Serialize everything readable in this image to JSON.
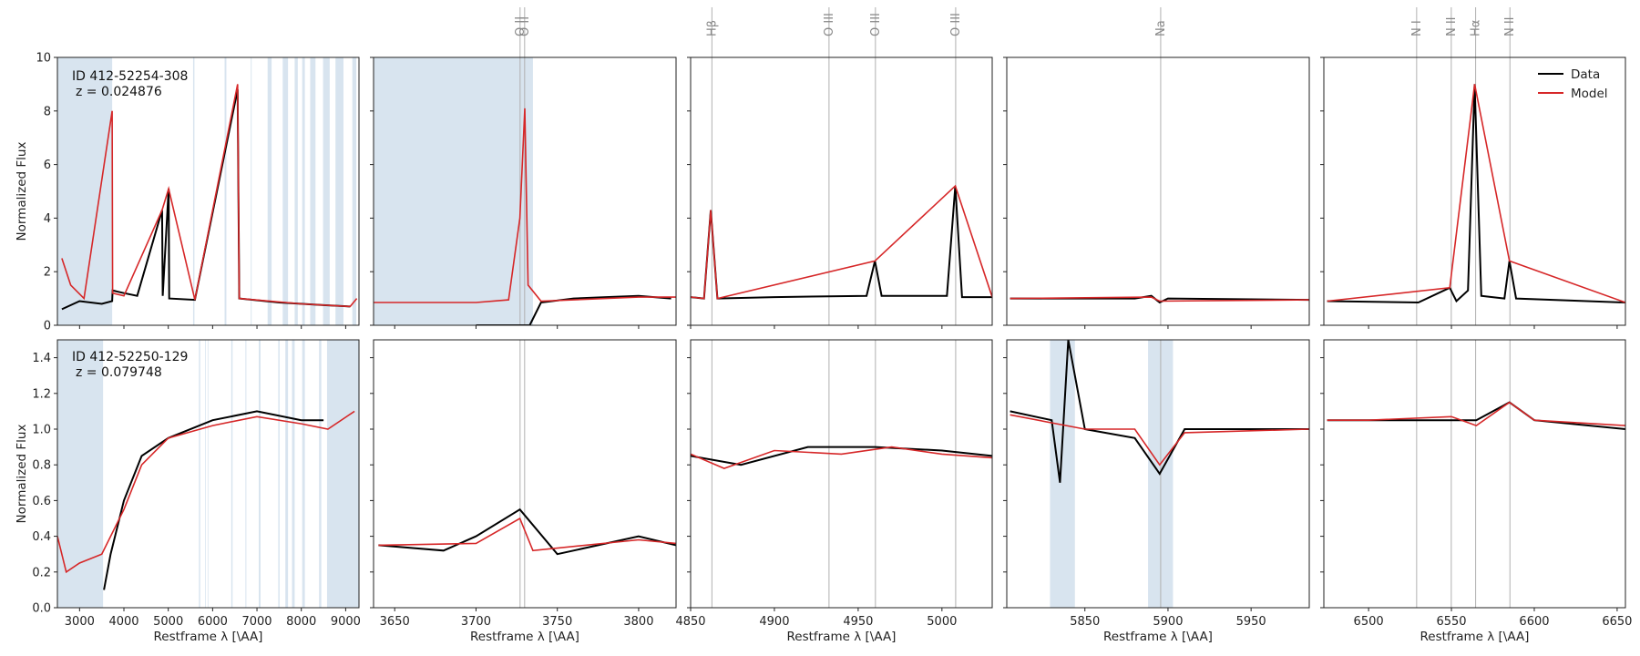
{
  "colors": {
    "data": "#000000",
    "model": "#d62728",
    "mask": "#d8e4ef",
    "line_marker": "#b0b0b0"
  },
  "figure": {
    "legend_placement": "top-right of top-right panel"
  },
  "legend": [
    {
      "label": "Data",
      "color": "#000000"
    },
    {
      "label": "Model",
      "color": "#d62728"
    }
  ],
  "chart_data": {
    "type": "line",
    "rows": [
      {
        "id_text": "ID 412-52254-308",
        "z_text": "z = 0.024876",
        "ylabel": "Normalized Flux",
        "ylim": [
          0,
          10
        ],
        "yticks": [
          "0",
          "2",
          "4",
          "6",
          "8",
          "10"
        ]
      },
      {
        "id_text": "ID 412-52250-129",
        "z_text": "z = 0.079748",
        "ylabel": "Normalized Flux",
        "ylim": [
          0,
          1.5
        ],
        "yticks": [
          "0.0",
          "0.2",
          "0.4",
          "0.6",
          "0.8",
          "1.0",
          "1.2",
          "1.4"
        ]
      }
    ],
    "columns": [
      {
        "xlim": [
          2500,
          9300
        ],
        "xticks": [
          "3000",
          "4000",
          "5000",
          "6000",
          "7000",
          "8000",
          "9000"
        ],
        "xlabel": "Restframe λ [\\AA]"
      },
      {
        "xlim": [
          3637,
          3823
        ],
        "xticks": [
          "3650",
          "3700",
          "3750",
          "3800"
        ],
        "xlabel": "Restframe λ [\\AA]"
      },
      {
        "xlim": [
          4850,
          5030
        ],
        "xticks": [
          "4850",
          "4900",
          "4950",
          "5000"
        ],
        "xlabel": "Restframe λ [\\AA]"
      },
      {
        "xlim": [
          5803,
          5985
        ],
        "xticks": [
          "5850",
          "5900",
          "5950"
        ],
        "xlabel": "Restframe λ [\\AA]"
      },
      {
        "xlim": [
          6473,
          6655
        ],
        "xticks": [
          "6500",
          "6550",
          "6600",
          "6650"
        ],
        "xlabel": "Restframe λ [\\AA]"
      }
    ],
    "emission_lines": [
      {
        "label": "O II",
        "wavelength": 3727.1
      },
      {
        "label": "O II",
        "wavelength": 3729.9
      },
      {
        "label": "Hβ",
        "wavelength": 4862.7
      },
      {
        "label": "O III",
        "wavelength": 4932.6
      },
      {
        "label": "O III",
        "wavelength": 4960.3
      },
      {
        "label": "O III",
        "wavelength": 5008.2
      },
      {
        "label": "Na",
        "wavelength": 5895.6
      },
      {
        "label": "N I",
        "wavelength": 6529.0
      },
      {
        "label": "N II",
        "wavelength": 6549.9
      },
      {
        "label": "Hα",
        "wavelength": 6564.6
      },
      {
        "label": "N II",
        "wavelength": 6585.3
      }
    ],
    "masked_regions": [
      {
        "row": 0,
        "ranges": [
          [
            2500,
            3735
          ],
          [
            5560,
            5590
          ],
          [
            6270,
            6310
          ],
          [
            6860,
            6880
          ],
          [
            7240,
            7330
          ],
          [
            7580,
            7700
          ],
          [
            7850,
            7920
          ],
          [
            8020,
            8080
          ],
          [
            8200,
            8320
          ],
          [
            8490,
            8640
          ],
          [
            8770,
            8950
          ],
          [
            9150,
            9240
          ]
        ]
      },
      {
        "row": 1,
        "ranges": [
          [
            2500,
            3530
          ],
          [
            5690,
            5720
          ],
          [
            6420,
            6450
          ],
          [
            6740,
            6760
          ],
          [
            7040,
            7080
          ],
          [
            7480,
            7510
          ],
          [
            7640,
            7700
          ],
          [
            7790,
            7850
          ],
          [
            8020,
            8080
          ],
          [
            8400,
            8450
          ],
          [
            8580,
            9300
          ],
          [
            5829,
            5844
          ],
          [
            5888,
            5903
          ]
        ]
      }
    ],
    "series": [
      {
        "name": "Data",
        "row": 0,
        "points": {
          "overview": [
            [
              2600,
              0.6
            ],
            [
              3000,
              0.9
            ],
            [
              3500,
              0.8
            ],
            [
              3735,
              0.9
            ],
            [
              3745,
              1.3
            ],
            [
              4000,
              1.2
            ],
            [
              4300,
              1.1
            ],
            [
              4861,
              4.3
            ],
            [
              4875,
              1.1
            ],
            [
              5008,
              5.1
            ],
            [
              5020,
              1.0
            ],
            [
              5600,
              0.95
            ],
            [
              6563,
              8.8
            ],
            [
              6600,
              1.0
            ],
            [
              7500,
              0.85
            ],
            [
              8500,
              0.75
            ],
            [
              9100,
              0.7
            ]
          ],
          "OII": [
            [
              3700,
              0.0
            ],
            [
              3727,
              0.0
            ],
            [
              3730,
              0.0
            ],
            [
              3733,
              0.0
            ],
            [
              3740,
              0.85
            ],
            [
              3760,
              1.0
            ],
            [
              3780,
              1.05
            ],
            [
              3800,
              1.1
            ],
            [
              3820,
              1.0
            ]
          ],
          "Hbeta_OIII": [
            [
              4850,
              1.05
            ],
            [
              4858,
              1.0
            ],
            [
              4862,
              4.3
            ],
            [
              4866,
              1.0
            ],
            [
              4900,
              1.05
            ],
            [
              4955,
              1.1
            ],
            [
              4960,
              2.4
            ],
            [
              4964,
              1.1
            ],
            [
              5003,
              1.1
            ],
            [
              5008,
              5.2
            ],
            [
              5012,
              1.05
            ],
            [
              5030,
              1.05
            ]
          ],
          "Na": [
            [
              5805,
              1.0
            ],
            [
              5850,
              1.0
            ],
            [
              5880,
              1.0
            ],
            [
              5890,
              1.1
            ],
            [
              5895,
              0.85
            ],
            [
              5900,
              1.0
            ],
            [
              5985,
              0.95
            ]
          ],
          "Halpha_NII": [
            [
              6475,
              0.9
            ],
            [
              6530,
              0.85
            ],
            [
              6549,
              1.4
            ],
            [
              6553,
              0.9
            ],
            [
              6560,
              1.3
            ],
            [
              6564,
              9.0
            ],
            [
              6568,
              1.1
            ],
            [
              6582,
              1.0
            ],
            [
              6585,
              2.4
            ],
            [
              6589,
              1.0
            ],
            [
              6655,
              0.85
            ]
          ]
        }
      },
      {
        "name": "Model",
        "row": 0,
        "points": {
          "overview": [
            [
              2600,
              2.5
            ],
            [
              2800,
              1.5
            ],
            [
              3100,
              1.0
            ],
            [
              3735,
              8.0
            ],
            [
              3745,
              1.2
            ],
            [
              4000,
              1.1
            ],
            [
              4861,
              4.3
            ],
            [
              5008,
              5.1
            ],
            [
              5600,
              0.95
            ],
            [
              6563,
              9.0
            ],
            [
              6600,
              1.0
            ],
            [
              8000,
              0.8
            ],
            [
              9100,
              0.7
            ],
            [
              9250,
              1.0
            ]
          ],
          "OII": [
            [
              3637,
              0.85
            ],
            [
              3700,
              0.85
            ],
            [
              3720,
              0.95
            ],
            [
              3727,
              4.0
            ],
            [
              3730,
              8.1
            ],
            [
              3732,
              1.5
            ],
            [
              3740,
              0.9
            ],
            [
              3800,
              1.05
            ],
            [
              3823,
              1.05
            ]
          ],
          "Hbeta_OIII": [
            [
              4850,
              1.05
            ],
            [
              4858,
              1.0
            ],
            [
              4862,
              4.3
            ],
            [
              4866,
              1.0
            ],
            [
              4960,
              2.4
            ],
            [
              5008,
              5.2
            ],
            [
              5030,
              1.05
            ]
          ],
          "Na": [
            [
              5805,
              1.0
            ],
            [
              5890,
              1.05
            ],
            [
              5895,
              0.9
            ],
            [
              5985,
              0.95
            ]
          ],
          "Halpha_NII": [
            [
              6475,
              0.9
            ],
            [
              6549,
              1.4
            ],
            [
              6564,
              9.0
            ],
            [
              6585,
              2.4
            ],
            [
              6655,
              0.85
            ]
          ]
        }
      },
      {
        "name": "Data",
        "row": 1,
        "points": {
          "overview": [
            [
              3550,
              0.1
            ],
            [
              3700,
              0.3
            ],
            [
              4000,
              0.6
            ],
            [
              4400,
              0.85
            ],
            [
              5000,
              0.95
            ],
            [
              6000,
              1.05
            ],
            [
              7000,
              1.1
            ],
            [
              8000,
              1.05
            ],
            [
              8500,
              1.05
            ]
          ],
          "OII": [
            [
              3640,
              0.35
            ],
            [
              3680,
              0.32
            ],
            [
              3700,
              0.4
            ],
            [
              3727,
              0.55
            ],
            [
              3750,
              0.3
            ],
            [
              3800,
              0.4
            ],
            [
              3823,
              0.35
            ]
          ],
          "Hbeta_OIII": [
            [
              4850,
              0.85
            ],
            [
              4880,
              0.8
            ],
            [
              4920,
              0.9
            ],
            [
              4960,
              0.9
            ],
            [
              5000,
              0.88
            ],
            [
              5030,
              0.85
            ]
          ],
          "Na": [
            [
              5805,
              1.1
            ],
            [
              5830,
              1.05
            ],
            [
              5835,
              0.7
            ],
            [
              5840,
              1.5
            ],
            [
              5850,
              1.0
            ],
            [
              5880,
              0.95
            ],
            [
              5895,
              0.75
            ],
            [
              5910,
              1.0
            ],
            [
              5985,
              1.0
            ]
          ],
          "Halpha_NII": [
            [
              6475,
              1.05
            ],
            [
              6500,
              1.05
            ],
            [
              6550,
              1.05
            ],
            [
              6565,
              1.05
            ],
            [
              6585,
              1.15
            ],
            [
              6600,
              1.05
            ],
            [
              6655,
              1.0
            ]
          ]
        }
      },
      {
        "name": "Model",
        "row": 1,
        "points": {
          "overview": [
            [
              2500,
              0.4
            ],
            [
              2700,
              0.2
            ],
            [
              3000,
              0.25
            ],
            [
              3500,
              0.3
            ],
            [
              3800,
              0.45
            ],
            [
              4000,
              0.55
            ],
            [
              4400,
              0.8
            ],
            [
              5000,
              0.95
            ],
            [
              6000,
              1.02
            ],
            [
              7000,
              1.07
            ],
            [
              8000,
              1.03
            ],
            [
              8600,
              1.0
            ],
            [
              9200,
              1.1
            ]
          ],
          "OII": [
            [
              3640,
              0.35
            ],
            [
              3700,
              0.36
            ],
            [
              3727,
              0.5
            ],
            [
              3735,
              0.32
            ],
            [
              3800,
              0.38
            ],
            [
              3823,
              0.36
            ]
          ],
          "Hbeta_OIII": [
            [
              4850,
              0.86
            ],
            [
              4870,
              0.78
            ],
            [
              4900,
              0.88
            ],
            [
              4940,
              0.86
            ],
            [
              4970,
              0.9
            ],
            [
              5000,
              0.86
            ],
            [
              5030,
              0.84
            ]
          ],
          "Na": [
            [
              5805,
              1.08
            ],
            [
              5850,
              1.0
            ],
            [
              5880,
              1.0
            ],
            [
              5895,
              0.8
            ],
            [
              5910,
              0.98
            ],
            [
              5985,
              1.0
            ]
          ],
          "Halpha_NII": [
            [
              6475,
              1.05
            ],
            [
              6500,
              1.05
            ],
            [
              6550,
              1.07
            ],
            [
              6565,
              1.02
            ],
            [
              6585,
              1.15
            ],
            [
              6600,
              1.05
            ],
            [
              6655,
              1.02
            ]
          ]
        }
      }
    ]
  }
}
